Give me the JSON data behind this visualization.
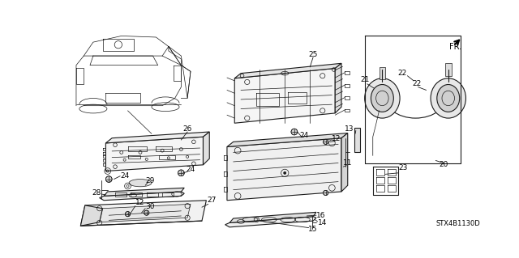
{
  "bg_color": "#ffffff",
  "line_color": "#1a1a1a",
  "fig_width": 6.4,
  "fig_height": 3.19,
  "dpi": 100,
  "watermark": "STX4B1130D",
  "fr_label": "FR."
}
